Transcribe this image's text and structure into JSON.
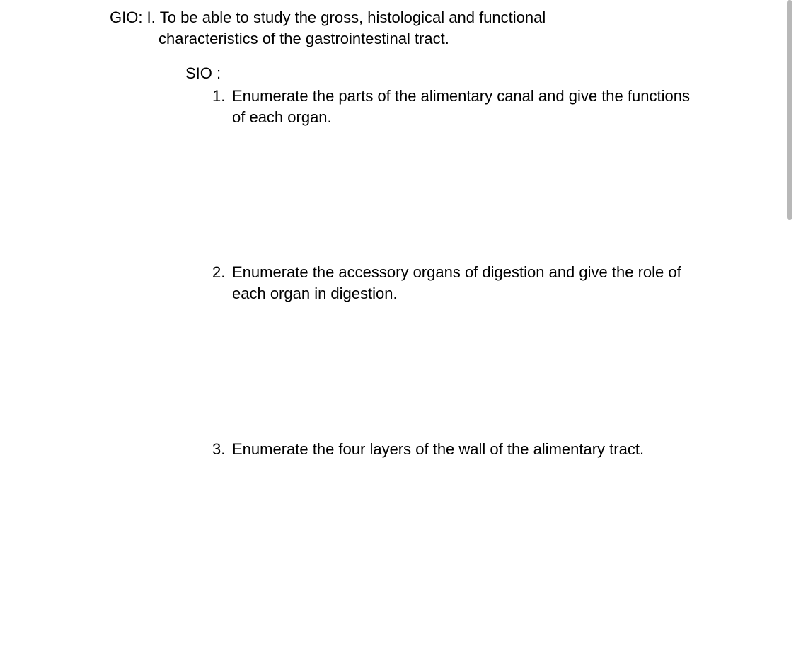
{
  "gio": {
    "label": "GIO: I.",
    "line1": "To be able to study the gross, histological and functional",
    "line2": "characteristics of  the gastrointestinal tract."
  },
  "sio": {
    "label": "SIO :",
    "items": [
      {
        "num": "1.",
        "text": "Enumerate the parts of the alimentary canal and give the functions of each organ."
      },
      {
        "num": "2.",
        "text": "Enumerate the accessory organs of digestion and give the role of each organ in digestion."
      },
      {
        "num": "3.",
        "text": "Enumerate the four layers of the wall of the alimentary tract."
      }
    ]
  },
  "colors": {
    "text": "#000000",
    "background": "#ffffff",
    "scrollbar_thumb": "#b8b8b8"
  },
  "typography": {
    "font_family": "Arial",
    "font_size_pt": 16
  }
}
